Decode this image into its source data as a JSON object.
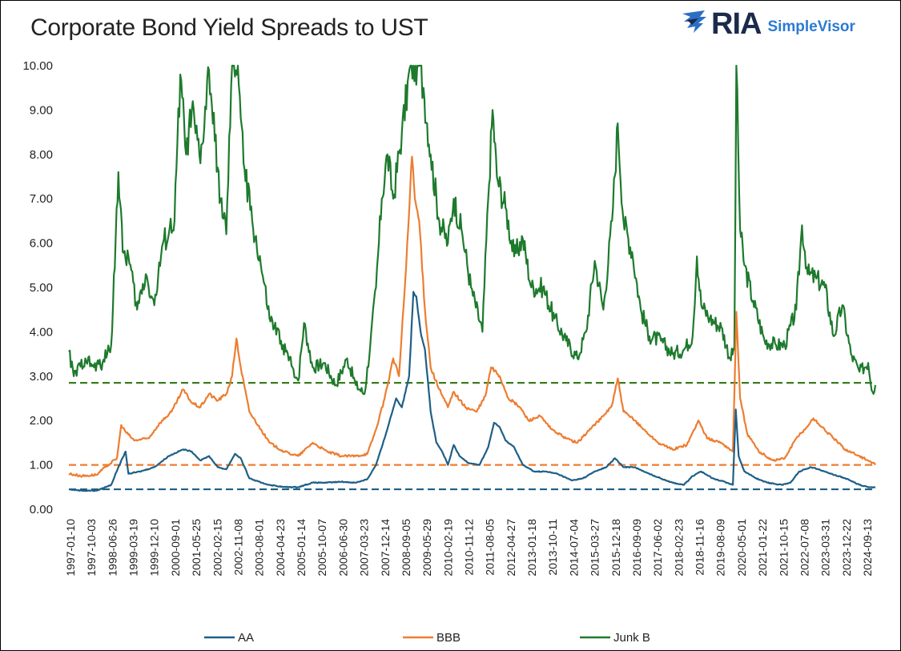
{
  "header": {
    "title": "Corporate Bond Yield Spreads to UST",
    "logo_main": "RIA",
    "logo_sub": "SimpleVisor"
  },
  "chart_data": {
    "type": "line",
    "title": "Corporate Bond Yield Spreads to UST",
    "xlabel": "",
    "ylabel": "",
    "ylim": [
      0,
      10
    ],
    "y_ticks": [
      "0.00",
      "1.00",
      "2.00",
      "3.00",
      "4.00",
      "5.00",
      "6.00",
      "7.00",
      "8.00",
      "9.00",
      "10.00"
    ],
    "x_range": [
      1997.03,
      2025.05
    ],
    "x_ticks": [
      "1997-01-10",
      "1997-10-03",
      "1998-06-26",
      "1999-03-19",
      "1999-12-10",
      "2000-09-01",
      "2001-05-25",
      "2002-02-15",
      "2002-11-08",
      "2003-08-01",
      "2004-04-23",
      "2005-01-14",
      "2005-10-07",
      "2006-06-30",
      "2007-03-23",
      "2007-12-14",
      "2008-09-05",
      "2009-05-29",
      "2010-02-19",
      "2010-11-12",
      "2011-08-05",
      "2012-04-27",
      "2013-01-18",
      "2013-10-11",
      "2014-07-04",
      "2015-03-27",
      "2015-12-18",
      "2016-09-09",
      "2017-06-02",
      "2018-02-23",
      "2018-11-16",
      "2019-08-09",
      "2020-05-01",
      "2021-01-22",
      "2021-10-15",
      "2022-07-08",
      "2023-03-31",
      "2023-12-22",
      "2024-09-13"
    ],
    "legend_position": "bottom",
    "series": [
      {
        "name": "AA",
        "color": "#1f5f86",
        "points": [
          [
            1997.03,
            0.45
          ],
          [
            1997.5,
            0.42
          ],
          [
            1998.0,
            0.42
          ],
          [
            1998.5,
            0.55
          ],
          [
            1998.75,
            0.95
          ],
          [
            1999.0,
            1.3
          ],
          [
            1999.1,
            0.8
          ],
          [
            1999.5,
            0.85
          ],
          [
            2000.0,
            0.95
          ],
          [
            2000.5,
            1.2
          ],
          [
            2001.0,
            1.35
          ],
          [
            2001.3,
            1.3
          ],
          [
            2001.6,
            1.1
          ],
          [
            2001.9,
            1.2
          ],
          [
            2002.2,
            0.95
          ],
          [
            2002.5,
            0.9
          ],
          [
            2002.8,
            1.25
          ],
          [
            2003.0,
            1.15
          ],
          [
            2003.3,
            0.7
          ],
          [
            2003.7,
            0.6
          ],
          [
            2004.0,
            0.55
          ],
          [
            2004.5,
            0.5
          ],
          [
            2005.0,
            0.5
          ],
          [
            2005.5,
            0.6
          ],
          [
            2006.0,
            0.6
          ],
          [
            2006.5,
            0.62
          ],
          [
            2007.0,
            0.6
          ],
          [
            2007.4,
            0.68
          ],
          [
            2007.7,
            1.0
          ],
          [
            2008.0,
            1.6
          ],
          [
            2008.4,
            2.5
          ],
          [
            2008.6,
            2.3
          ],
          [
            2008.85,
            3.0
          ],
          [
            2009.0,
            4.9
          ],
          [
            2009.1,
            4.8
          ],
          [
            2009.25,
            4.0
          ],
          [
            2009.4,
            3.6
          ],
          [
            2009.6,
            2.2
          ],
          [
            2009.8,
            1.5
          ],
          [
            2010.0,
            1.3
          ],
          [
            2010.2,
            1.0
          ],
          [
            2010.4,
            1.45
          ],
          [
            2010.6,
            1.2
          ],
          [
            2010.9,
            1.05
          ],
          [
            2011.3,
            1.0
          ],
          [
            2011.6,
            1.4
          ],
          [
            2011.8,
            1.95
          ],
          [
            2012.0,
            1.85
          ],
          [
            2012.2,
            1.55
          ],
          [
            2012.5,
            1.4
          ],
          [
            2012.8,
            1.0
          ],
          [
            2013.2,
            0.85
          ],
          [
            2013.6,
            0.85
          ],
          [
            2014.0,
            0.8
          ],
          [
            2014.5,
            0.65
          ],
          [
            2014.9,
            0.7
          ],
          [
            2015.3,
            0.85
          ],
          [
            2015.7,
            0.95
          ],
          [
            2016.0,
            1.15
          ],
          [
            2016.3,
            0.95
          ],
          [
            2016.7,
            0.95
          ],
          [
            2017.0,
            0.85
          ],
          [
            2017.5,
            0.72
          ],
          [
            2018.0,
            0.6
          ],
          [
            2018.4,
            0.55
          ],
          [
            2018.7,
            0.75
          ],
          [
            2019.0,
            0.85
          ],
          [
            2019.4,
            0.7
          ],
          [
            2019.9,
            0.6
          ],
          [
            2020.1,
            0.55
          ],
          [
            2020.2,
            2.25
          ],
          [
            2020.3,
            1.2
          ],
          [
            2020.5,
            0.85
          ],
          [
            2020.9,
            0.7
          ],
          [
            2021.3,
            0.6
          ],
          [
            2021.8,
            0.55
          ],
          [
            2022.1,
            0.6
          ],
          [
            2022.4,
            0.85
          ],
          [
            2022.8,
            0.95
          ],
          [
            2023.1,
            0.9
          ],
          [
            2023.5,
            0.8
          ],
          [
            2024.0,
            0.7
          ],
          [
            2024.5,
            0.55
          ],
          [
            2024.8,
            0.5
          ],
          [
            2025.05,
            0.5
          ]
        ]
      },
      {
        "name": "BBB",
        "color": "#ed7d31",
        "points": [
          [
            1997.03,
            0.8
          ],
          [
            1997.5,
            0.75
          ],
          [
            1998.0,
            0.78
          ],
          [
            1998.3,
            0.95
          ],
          [
            1998.7,
            1.15
          ],
          [
            1998.85,
            1.9
          ],
          [
            1999.0,
            1.75
          ],
          [
            1999.3,
            1.55
          ],
          [
            1999.8,
            1.6
          ],
          [
            2000.2,
            1.95
          ],
          [
            2000.6,
            2.2
          ],
          [
            2001.0,
            2.7
          ],
          [
            2001.3,
            2.4
          ],
          [
            2001.6,
            2.3
          ],
          [
            2001.9,
            2.6
          ],
          [
            2002.2,
            2.45
          ],
          [
            2002.5,
            2.6
          ],
          [
            2002.7,
            3.0
          ],
          [
            2002.85,
            3.85
          ],
          [
            2003.0,
            3.2
          ],
          [
            2003.3,
            2.2
          ],
          [
            2003.7,
            1.8
          ],
          [
            2004.0,
            1.5
          ],
          [
            2004.5,
            1.3
          ],
          [
            2005.0,
            1.2
          ],
          [
            2005.5,
            1.5
          ],
          [
            2006.0,
            1.3
          ],
          [
            2006.5,
            1.2
          ],
          [
            2007.0,
            1.2
          ],
          [
            2007.4,
            1.25
          ],
          [
            2007.7,
            1.8
          ],
          [
            2008.0,
            2.5
          ],
          [
            2008.3,
            3.4
          ],
          [
            2008.5,
            3.0
          ],
          [
            2008.75,
            5.5
          ],
          [
            2008.95,
            7.95
          ],
          [
            2009.05,
            7.0
          ],
          [
            2009.2,
            6.5
          ],
          [
            2009.4,
            4.5
          ],
          [
            2009.6,
            3.2
          ],
          [
            2009.9,
            2.7
          ],
          [
            2010.2,
            2.3
          ],
          [
            2010.4,
            2.65
          ],
          [
            2010.8,
            2.3
          ],
          [
            2011.2,
            2.2
          ],
          [
            2011.5,
            2.55
          ],
          [
            2011.7,
            3.2
          ],
          [
            2012.0,
            3.0
          ],
          [
            2012.3,
            2.5
          ],
          [
            2012.7,
            2.3
          ],
          [
            2013.0,
            2.0
          ],
          [
            2013.4,
            2.1
          ],
          [
            2013.8,
            1.8
          ],
          [
            2014.3,
            1.6
          ],
          [
            2014.7,
            1.5
          ],
          [
            2015.2,
            1.85
          ],
          [
            2015.6,
            2.1
          ],
          [
            2015.9,
            2.35
          ],
          [
            2016.1,
            2.95
          ],
          [
            2016.3,
            2.2
          ],
          [
            2016.7,
            2.0
          ],
          [
            2017.0,
            1.8
          ],
          [
            2017.5,
            1.5
          ],
          [
            2018.0,
            1.35
          ],
          [
            2018.5,
            1.45
          ],
          [
            2018.9,
            2.0
          ],
          [
            2019.2,
            1.6
          ],
          [
            2019.7,
            1.5
          ],
          [
            2020.1,
            1.3
          ],
          [
            2020.22,
            4.45
          ],
          [
            2020.35,
            2.5
          ],
          [
            2020.6,
            1.7
          ],
          [
            2021.0,
            1.3
          ],
          [
            2021.5,
            1.1
          ],
          [
            2021.9,
            1.15
          ],
          [
            2022.3,
            1.6
          ],
          [
            2022.6,
            1.8
          ],
          [
            2022.9,
            2.05
          ],
          [
            2023.2,
            1.85
          ],
          [
            2023.6,
            1.6
          ],
          [
            2024.0,
            1.35
          ],
          [
            2024.5,
            1.2
          ],
          [
            2024.8,
            1.1
          ],
          [
            2025.05,
            1.0
          ]
        ]
      },
      {
        "name": "Junk B",
        "color": "#1e7a2d",
        "points": [
          [
            1997.03,
            3.55
          ],
          [
            1997.2,
            3.0
          ],
          [
            1997.6,
            3.4
          ],
          [
            1997.9,
            3.2
          ],
          [
            1998.2,
            3.3
          ],
          [
            1998.5,
            3.7
          ],
          [
            1998.75,
            7.6
          ],
          [
            1998.9,
            5.8
          ],
          [
            1999.1,
            5.7
          ],
          [
            1999.4,
            4.5
          ],
          [
            1999.7,
            5.3
          ],
          [
            2000.0,
            4.6
          ],
          [
            2000.3,
            6.0
          ],
          [
            2000.7,
            6.5
          ],
          [
            2000.9,
            9.8
          ],
          [
            2001.1,
            8.0
          ],
          [
            2001.3,
            9.0
          ],
          [
            2001.6,
            7.8
          ],
          [
            2001.9,
            9.9
          ],
          [
            2002.1,
            8.3
          ],
          [
            2002.3,
            7.0
          ],
          [
            2002.5,
            6.2
          ],
          [
            2002.7,
            10.0
          ],
          [
            2002.9,
            10.0
          ],
          [
            2003.1,
            7.8
          ],
          [
            2003.4,
            6.5
          ],
          [
            2003.7,
            5.5
          ],
          [
            2004.0,
            4.3
          ],
          [
            2004.4,
            3.8
          ],
          [
            2004.8,
            3.2
          ],
          [
            2005.0,
            2.9
          ],
          [
            2005.2,
            4.2
          ],
          [
            2005.5,
            3.2
          ],
          [
            2005.9,
            3.3
          ],
          [
            2006.3,
            2.8
          ],
          [
            2006.7,
            3.4
          ],
          [
            2007.0,
            2.8
          ],
          [
            2007.3,
            2.6
          ],
          [
            2007.5,
            3.7
          ],
          [
            2007.7,
            5.0
          ],
          [
            2007.9,
            7.0
          ],
          [
            2008.1,
            8.0
          ],
          [
            2008.3,
            7.0
          ],
          [
            2008.6,
            8.5
          ],
          [
            2008.9,
            10.0
          ],
          [
            2009.2,
            10.0
          ],
          [
            2009.35,
            9.5
          ],
          [
            2009.6,
            8.0
          ],
          [
            2009.9,
            6.5
          ],
          [
            2010.2,
            6.0
          ],
          [
            2010.4,
            7.0
          ],
          [
            2010.7,
            6.2
          ],
          [
            2011.0,
            5.0
          ],
          [
            2011.4,
            4.0
          ],
          [
            2011.6,
            7.0
          ],
          [
            2011.75,
            9.0
          ],
          [
            2011.9,
            7.5
          ],
          [
            2012.2,
            6.8
          ],
          [
            2012.5,
            5.7
          ],
          [
            2012.8,
            6.1
          ],
          [
            2013.1,
            5.0
          ],
          [
            2013.5,
            5.0
          ],
          [
            2013.9,
            4.3
          ],
          [
            2014.3,
            3.8
          ],
          [
            2014.7,
            3.4
          ],
          [
            2015.0,
            4.0
          ],
          [
            2015.3,
            5.6
          ],
          [
            2015.6,
            4.5
          ],
          [
            2015.9,
            6.5
          ],
          [
            2016.1,
            8.7
          ],
          [
            2016.3,
            6.5
          ],
          [
            2016.6,
            5.8
          ],
          [
            2016.9,
            4.5
          ],
          [
            2017.2,
            3.9
          ],
          [
            2017.6,
            3.8
          ],
          [
            2018.0,
            3.5
          ],
          [
            2018.4,
            3.6
          ],
          [
            2018.7,
            3.9
          ],
          [
            2018.85,
            5.7
          ],
          [
            2019.0,
            4.6
          ],
          [
            2019.3,
            4.3
          ],
          [
            2019.7,
            4.1
          ],
          [
            2020.0,
            3.4
          ],
          [
            2020.15,
            3.6
          ],
          [
            2020.22,
            10.0
          ],
          [
            2020.35,
            6.3
          ],
          [
            2020.5,
            5.5
          ],
          [
            2020.8,
            4.7
          ],
          [
            2021.2,
            3.8
          ],
          [
            2021.6,
            3.7
          ],
          [
            2021.9,
            3.7
          ],
          [
            2022.3,
            4.5
          ],
          [
            2022.5,
            6.4
          ],
          [
            2022.7,
            5.3
          ],
          [
            2023.0,
            5.2
          ],
          [
            2023.3,
            5.0
          ],
          [
            2023.6,
            3.9
          ],
          [
            2023.9,
            4.6
          ],
          [
            2024.2,
            3.5
          ],
          [
            2024.5,
            3.1
          ],
          [
            2024.8,
            3.3
          ],
          [
            2024.95,
            2.65
          ],
          [
            2025.05,
            2.8
          ]
        ]
      }
    ],
    "reference_lines": [
      {
        "series": "AA",
        "value": 0.45,
        "color": "#1f5f86"
      },
      {
        "series": "BBB",
        "value": 1.0,
        "color": "#ed7d31"
      },
      {
        "series": "Junk B",
        "value": 2.85,
        "color": "#3a7d1f"
      }
    ]
  }
}
